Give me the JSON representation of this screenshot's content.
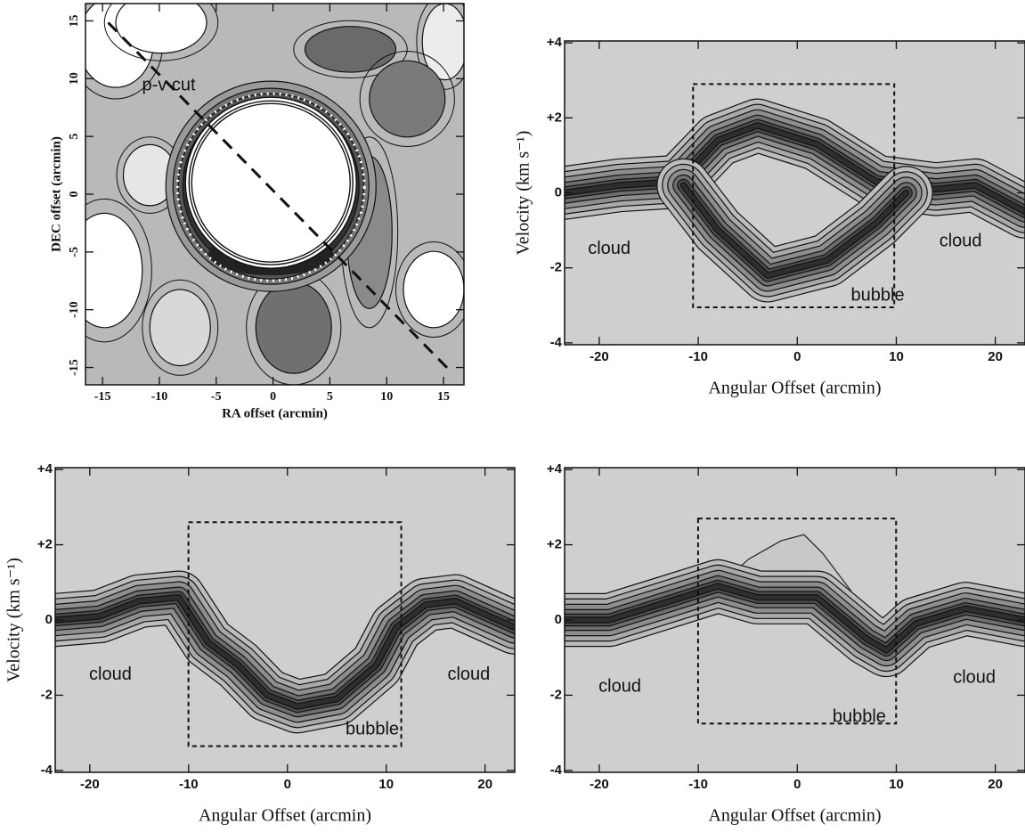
{
  "chart_data": [
    {
      "type": "contour-map",
      "xlabel": "RA offset (arcmin)",
      "ylabel": "DEC offset (arcmin)",
      "xlim": [
        -16.5,
        16.8
      ],
      "ylim": [
        -16.5,
        16.5
      ],
      "xticks": [
        -15,
        -10,
        -5,
        0,
        5,
        10,
        15
      ],
      "yticks": [
        -15,
        -10,
        -5,
        0,
        5,
        10,
        15
      ],
      "annotations": [
        "p-v cut"
      ]
    },
    {
      "type": "pv-diagram",
      "xlabel": "Angular Offset (arcmin)",
      "ylabel": "Velocity (km s⁻¹)",
      "xlim": [
        -23.5,
        23
      ],
      "ylim": [
        -4.05,
        4.05
      ],
      "xticks": [
        -20,
        -10,
        0,
        10,
        20
      ],
      "yticks": [
        {
          "value": -4,
          "label": "-4"
        },
        {
          "value": -2,
          "label": "-2"
        },
        0,
        {
          "value": 2,
          "label": "+2"
        },
        {
          "value": 4,
          "label": "+4"
        }
      ],
      "annotations": [
        "cloud",
        "cloud",
        "bubble"
      ]
    },
    {
      "type": "pv-diagram",
      "xlabel": "Angular Offset (arcmin)",
      "ylabel": "Velocity (km s⁻¹)",
      "xlim": [
        -23.5,
        23
      ],
      "ylim": [
        -4.05,
        4.05
      ],
      "xticks": [
        -20,
        -10,
        0,
        10,
        20
      ],
      "yticks": [
        {
          "value": -4,
          "label": "-4"
        },
        {
          "value": -2,
          "label": "-2"
        },
        0,
        {
          "value": 2,
          "label": "+2"
        },
        {
          "value": 4,
          "label": "+4"
        }
      ],
      "annotations": [
        "cloud",
        "cloud",
        "bubble"
      ]
    },
    {
      "type": "pv-diagram",
      "xlabel": "Angular Offset (arcmin)",
      "xlim": [
        -23.5,
        23
      ],
      "ylim": [
        -4.05,
        4.05
      ],
      "xticks": [
        -20,
        -10,
        0,
        10,
        20
      ],
      "yticks": [
        {
          "value": -4,
          "label": "-4"
        },
        {
          "value": -2,
          "label": "-2"
        },
        0,
        {
          "value": 2,
          "label": "+2"
        },
        {
          "value": 4,
          "label": "+4"
        }
      ],
      "annotations": [
        "cloud",
        "cloud",
        "bubble"
      ]
    }
  ]
}
